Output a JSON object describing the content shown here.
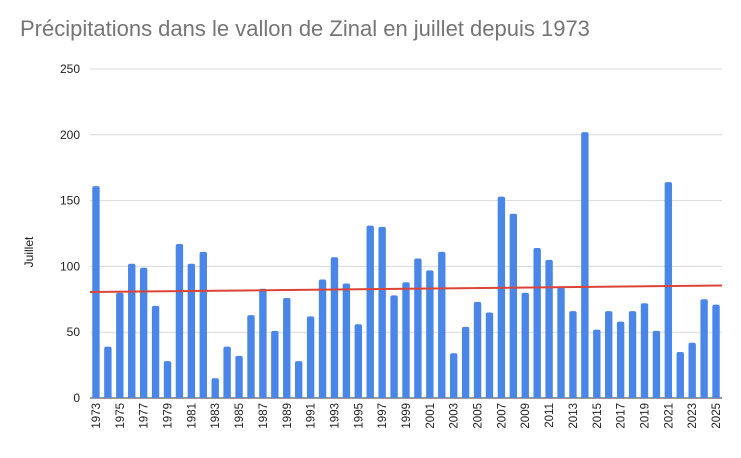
{
  "chart_data": {
    "type": "bar",
    "title": "Précipitations dans le vallon de Zinal en juillet depuis 1973",
    "xlabel": "",
    "ylabel": "Juillet",
    "ylim": [
      0,
      250
    ],
    "yticks": [
      0,
      50,
      100,
      150,
      200,
      250
    ],
    "grid": true,
    "legend": "none",
    "colors": {
      "bar": "#4a86e8",
      "trend": "#db4437",
      "grid": "#d9d9d9",
      "axis": "#333333"
    },
    "categories": [
      "1973",
      "1974",
      "1975",
      "1976",
      "1977",
      "1978",
      "1979",
      "1980",
      "1981",
      "1982",
      "1983",
      "1984",
      "1985",
      "1986",
      "1987",
      "1988",
      "1989",
      "1990",
      "1991",
      "1992",
      "1993",
      "1994",
      "1995",
      "1996",
      "1997",
      "1998",
      "1999",
      "2000",
      "2001",
      "2002",
      "2003",
      "2004",
      "2005",
      "2006",
      "2007",
      "2008",
      "2009",
      "2010",
      "2011",
      "2012",
      "2013",
      "2014",
      "2015",
      "2016",
      "2017",
      "2018",
      "2019",
      "2020",
      "2021",
      "2022",
      "2023",
      "2024",
      "2025"
    ],
    "values": [
      161,
      39,
      80,
      102,
      99,
      70,
      28,
      117,
      102,
      111,
      15,
      39,
      32,
      63,
      83,
      51,
      76,
      28,
      62,
      90,
      107,
      87,
      56,
      131,
      130,
      78,
      88,
      106,
      97,
      111,
      34,
      54,
      73,
      65,
      153,
      140,
      80,
      114,
      105,
      84,
      66,
      202,
      52,
      66,
      58,
      66,
      72,
      51,
      164,
      35,
      42,
      75,
      71
    ],
    "x_tick_labels": [
      "1973",
      "1975",
      "1977",
      "1979",
      "1981",
      "1983",
      "1985",
      "1987",
      "1989",
      "1991",
      "1993",
      "1995",
      "1997",
      "1999",
      "2001",
      "2003",
      "2005",
      "2007",
      "2009",
      "2011",
      "2013",
      "2015",
      "2017",
      "2019",
      "2021",
      "2023",
      "2025"
    ],
    "trend": {
      "start": 80.5,
      "end": 85.5
    }
  }
}
